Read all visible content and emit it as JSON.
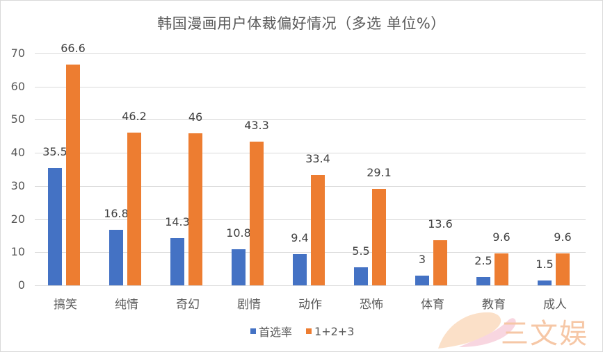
{
  "chart_data": {
    "type": "bar",
    "title": "韩国漫画用户体裁偏好情况（多选 单位%）",
    "xlabel": "",
    "ylabel": "",
    "ylim": [
      0,
      70
    ],
    "yticks": [
      0,
      10,
      20,
      30,
      40,
      50,
      60,
      70
    ],
    "grid": true,
    "legend_position": "bottom",
    "categories": [
      "搞笑",
      "纯情",
      "奇幻",
      "剧情",
      "动作",
      "恐怖",
      "体育",
      "教育",
      "成人"
    ],
    "series": [
      {
        "name": "首选率",
        "color": "#4472c4",
        "values": [
          35.5,
          16.8,
          14.3,
          10.8,
          9.4,
          5.5,
          3,
          2.5,
          1.5
        ]
      },
      {
        "name": "1+2+3",
        "color": "#ed7d31",
        "values": [
          66.6,
          46.2,
          46,
          43.3,
          33.4,
          29.1,
          13.6,
          9.6,
          9.6
        ]
      }
    ]
  },
  "legend": {
    "items": [
      "首选率",
      "1+2+3"
    ]
  },
  "watermark": {
    "text": "三文娱"
  }
}
